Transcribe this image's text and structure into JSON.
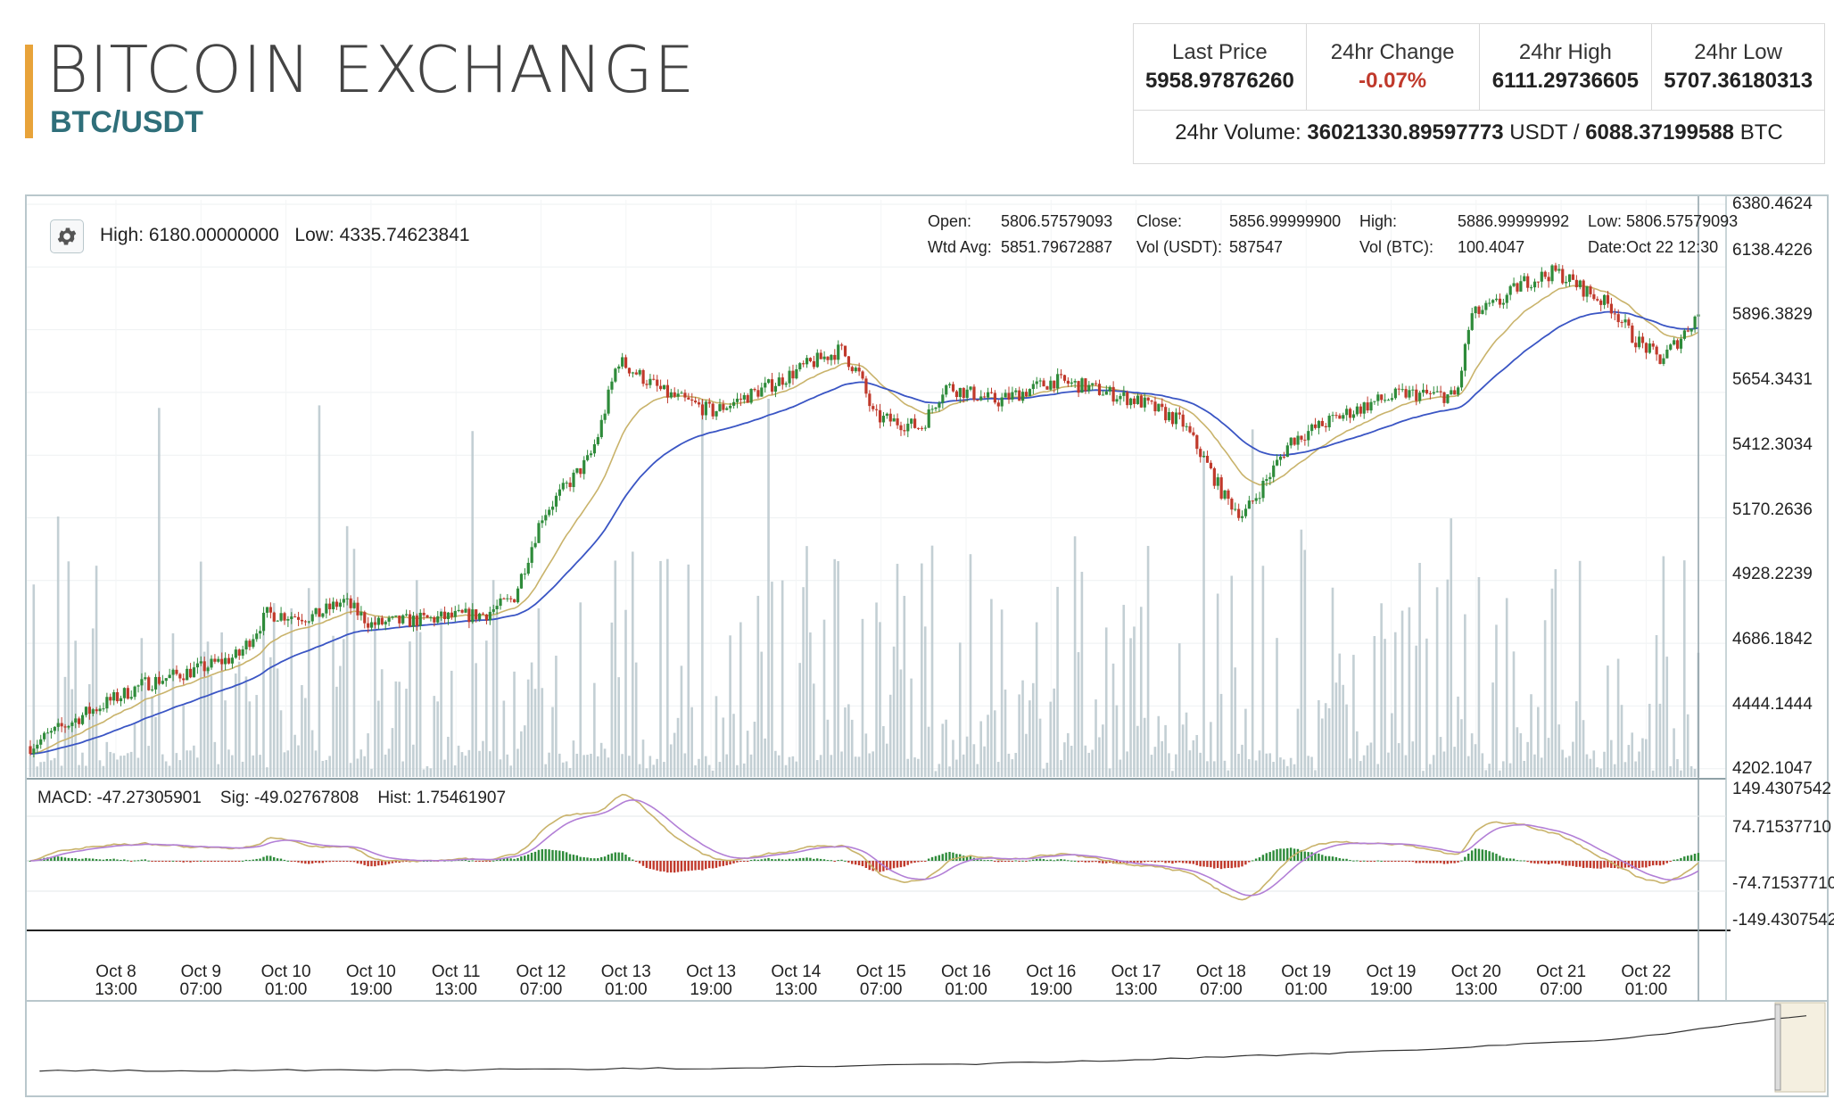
{
  "header": {
    "title": "BITCOIN EXCHANGE",
    "pair": "BTC/USDT"
  },
  "stats": [
    {
      "label": "Last Price",
      "value": "5958.97876260",
      "negative": false
    },
    {
      "label": "24hr Change",
      "value": "-0.07%",
      "negative": true
    },
    {
      "label": "24hr High",
      "value": "6111.29736605",
      "negative": false
    },
    {
      "label": "24hr Low",
      "value": "5707.36180313",
      "negative": false
    }
  ],
  "volume": {
    "label": "24hr Volume:",
    "usdt_value": "36021330.89597773",
    "usdt_unit": "USDT /",
    "btc_value": "6088.37199588",
    "btc_unit": "BTC"
  },
  "chart_header": {
    "high_label": "High:",
    "high_value": "6180.00000000",
    "low_label": "Low:",
    "low_value": "4335.74623841",
    "settings_icon": "gear-icon"
  },
  "candle_info": {
    "open_label": "Open:",
    "open_value": "5806.57579093",
    "close_label": "Close:",
    "close_value": "5856.99999900",
    "high_label": "High:",
    "high_value": "5886.99999992",
    "low_label": "Low:",
    "low_value": "5806.57579093",
    "wavg_label": "Wtd Avg:",
    "wavg_value": "5851.79672887",
    "volu_label": "Vol (USDT):",
    "volu_value": "587547",
    "volb_label": "Vol (BTC):",
    "volb_value": "100.4047",
    "date_label": "Date:",
    "date_value": "Oct 22 12:30"
  },
  "macd": {
    "macd_label": "MACD:",
    "macd_value": "-47.27305901",
    "sig_label": "Sig:",
    "sig_value": "-49.02767808",
    "hist_label": "Hist:",
    "hist_value": "1.75461907"
  },
  "colors": {
    "up": "#2e8b3a",
    "down": "#c0392b",
    "ema_fast": "#c9b36b",
    "ema_slow": "#3a55c4",
    "volume": "#b9c7cc",
    "macd_line": "#c9b36b",
    "signal_line": "#b27fd6",
    "accent": "#e8a33a",
    "pair": "#2f6f7a"
  },
  "chart_data": {
    "type": "candlestick",
    "pair": "BTC/USDT",
    "price_axis_ticks": [
      "6380.4624",
      "6138.4226",
      "5896.3829",
      "5654.3431",
      "5412.3034",
      "5170.2636",
      "4928.2239",
      "4686.1842",
      "4444.1444",
      "4202.1047"
    ],
    "price_ylim": [
      4202.1047,
      6380.4624
    ],
    "macd_axis_ticks": [
      "149.4307542",
      "74.71537710",
      "-74.71537710",
      "-149.4307542"
    ],
    "macd_ylim": [
      -149.4307542,
      149.4307542
    ],
    "x_ticks": [
      {
        "l1": "Oct 8",
        "l2": "13:00"
      },
      {
        "l1": "Oct 9",
        "l2": "07:00"
      },
      {
        "l1": "Oct 10",
        "l2": "01:00"
      },
      {
        "l1": "Oct 10",
        "l2": "19:00"
      },
      {
        "l1": "Oct 11",
        "l2": "13:00"
      },
      {
        "l1": "Oct 12",
        "l2": "07:00"
      },
      {
        "l1": "Oct 13",
        "l2": "01:00"
      },
      {
        "l1": "Oct 13",
        "l2": "19:00"
      },
      {
        "l1": "Oct 14",
        "l2": "13:00"
      },
      {
        "l1": "Oct 15",
        "l2": "07:00"
      },
      {
        "l1": "Oct 16",
        "l2": "01:00"
      },
      {
        "l1": "Oct 16",
        "l2": "19:00"
      },
      {
        "l1": "Oct 17",
        "l2": "13:00"
      },
      {
        "l1": "Oct 18",
        "l2": "07:00"
      },
      {
        "l1": "Oct 19",
        "l2": "01:00"
      },
      {
        "l1": "Oct 19",
        "l2": "19:00"
      },
      {
        "l1": "Oct 20",
        "l2": "13:00"
      },
      {
        "l1": "Oct 21",
        "l2": "07:00"
      },
      {
        "l1": "Oct 22",
        "l2": "01:00"
      }
    ],
    "close_path": [
      {
        "t": "Oct 8 00:00",
        "close": 4290
      },
      {
        "t": "Oct 8 12:00",
        "close": 4420
      },
      {
        "t": "Oct 9 00:00",
        "close": 4530
      },
      {
        "t": "Oct 9 12:00",
        "close": 4590
      },
      {
        "t": "Oct 9 20:00",
        "close": 4640
      },
      {
        "t": "Oct 10 02:00",
        "close": 4800
      },
      {
        "t": "Oct 10 12:00",
        "close": 4790
      },
      {
        "t": "Oct 10 18:00",
        "close": 4850
      },
      {
        "t": "Oct 11 00:00",
        "close": 4760
      },
      {
        "t": "Oct 11 12:00",
        "close": 4780
      },
      {
        "t": "Oct 12 00:00",
        "close": 4800
      },
      {
        "t": "Oct 12 06:00",
        "close": 4860
      },
      {
        "t": "Oct 12 12:00",
        "close": 5180
      },
      {
        "t": "Oct 12 22:00",
        "close": 5400
      },
      {
        "t": "Oct 13 00:00",
        "close": 5500
      },
      {
        "t": "Oct 13 04:00",
        "close": 5780
      },
      {
        "t": "Oct 13 14:00",
        "close": 5650
      },
      {
        "t": "Oct 14 00:00",
        "close": 5580
      },
      {
        "t": "Oct 14 12:00",
        "close": 5680
      },
      {
        "t": "Oct 14 20:00",
        "close": 5760
      },
      {
        "t": "Oct 15 03:00",
        "close": 5820
      },
      {
        "t": "Oct 15 07:00",
        "close": 5720
      },
      {
        "t": "Oct 15 10:00",
        "close": 5560
      },
      {
        "t": "Oct 15 20:00",
        "close": 5520
      },
      {
        "t": "Oct 16 01:00",
        "close": 5680
      },
      {
        "t": "Oct 16 12:00",
        "close": 5620
      },
      {
        "t": "Oct 17 00:00",
        "close": 5700
      },
      {
        "t": "Oct 17 06:00",
        "close": 5680
      },
      {
        "t": "Oct 17 18:00",
        "close": 5620
      },
      {
        "t": "Oct 18 03:00",
        "close": 5540
      },
      {
        "t": "Oct 18 07:00",
        "close": 5420
      },
      {
        "t": "Oct 18 12:00",
        "close": 5250
      },
      {
        "t": "Oct 18 16:00",
        "close": 5180
      },
      {
        "t": "Oct 18 22:00",
        "close": 5350
      },
      {
        "t": "Oct 19 02:00",
        "close": 5470
      },
      {
        "t": "Oct 19 12:00",
        "close": 5560
      },
      {
        "t": "Oct 19 20:00",
        "close": 5620
      },
      {
        "t": "Oct 20 02:00",
        "close": 5650
      },
      {
        "t": "Oct 20 13:00",
        "close": 5640
      },
      {
        "t": "Oct 20 16:00",
        "close": 5950
      },
      {
        "t": "Oct 20 22:00",
        "close": 6000
      },
      {
        "t": "Oct 21 03:00",
        "close": 6080
      },
      {
        "t": "Oct 21 10:00",
        "close": 6120
      },
      {
        "t": "Oct 21 16:00",
        "close": 6050
      },
      {
        "t": "Oct 21 22:00",
        "close": 5980
      },
      {
        "t": "Oct 22 02:00",
        "close": 5870
      },
      {
        "t": "Oct 22 08:00",
        "close": 5780
      },
      {
        "t": "Oct 22 12:00",
        "close": 5860
      },
      {
        "t": "Oct 22 16:00",
        "close": 5960
      }
    ]
  }
}
